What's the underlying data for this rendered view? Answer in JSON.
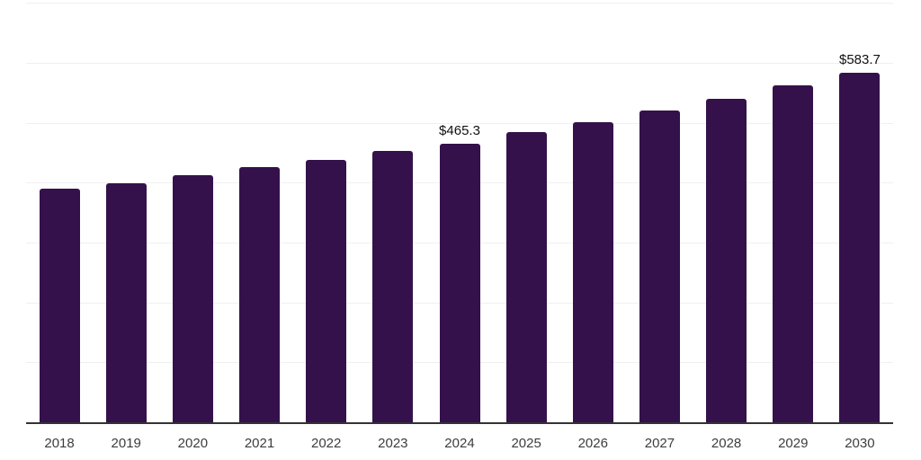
{
  "chart_data": {
    "type": "bar",
    "title": "",
    "xlabel": "",
    "ylabel": "",
    "categories": [
      "2018",
      "2019",
      "2020",
      "2021",
      "2022",
      "2023",
      "2024",
      "2025",
      "2026",
      "2027",
      "2028",
      "2029",
      "2030"
    ],
    "values": [
      390.2,
      399.5,
      412.0,
      425.4,
      438.6,
      452.9,
      465.3,
      483.9,
      501.6,
      520.4,
      540.6,
      561.8,
      583.7
    ],
    "data_labels": {
      "2024": "$465.3",
      "2030": "$583.7"
    },
    "ylim": [
      0,
      705
    ],
    "gridline_values": [
      100,
      200,
      300,
      400,
      500,
      600,
      700
    ],
    "grid": true,
    "legend": false,
    "colors": {
      "bar": "#35114b",
      "gridline": "#f0f0f0",
      "axis": "#333333",
      "tick_label": "#3d3d3d",
      "value_label": "#111111",
      "background": "#ffffff"
    }
  }
}
